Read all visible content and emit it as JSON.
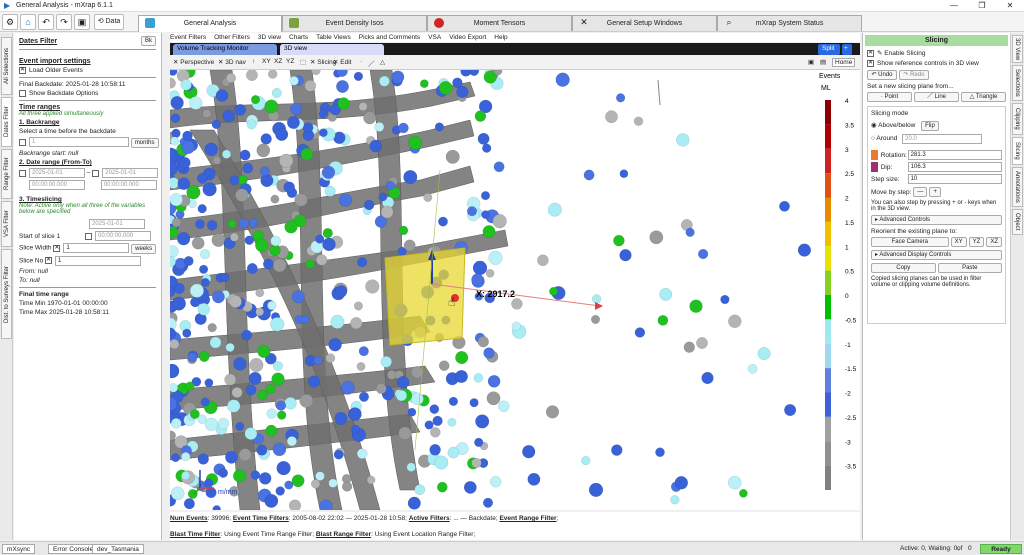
{
  "window": {
    "title": "General Analysis - mXrap 6.1.1",
    "minimize": "—",
    "restore": "❐",
    "close": "✕"
  },
  "toolbar": {
    "data_label": "Data"
  },
  "main_tabs": [
    {
      "label": "General Analysis",
      "active": true,
      "color": "#39a0d6"
    },
    {
      "label": "Event Density Isos",
      "active": false,
      "color": "#7aa33c"
    },
    {
      "label": "Moment Tensors",
      "active": false,
      "color": "#d02525"
    },
    {
      "label": "General Setup Windows",
      "active": false,
      "color": "#555555"
    },
    {
      "label": "mXrap System Status",
      "active": false,
      "color": "#555555"
    }
  ],
  "left_tabs": [
    "All Selections",
    "Dates Filter",
    "Range Filter",
    "VSA Filter",
    "Dist. to Surveys Filter"
  ],
  "dates_filter": {
    "title": "Dates Filter",
    "bk": "Bk",
    "import_settings": "Event import settings",
    "load_older": "Load Older Events",
    "final_backdate": "Final Backdate: 2025-01-28 10:58:11",
    "show_backdate": "Show Backdate Options",
    "time_ranges": "Time ranges",
    "time_ranges_note": "All three applied simultaneously",
    "backrange": "1. Backrange",
    "backrange_desc": "Select a time before the backdate",
    "backrange_value": "1",
    "months": "months",
    "backrange_start": "Backrange start: null",
    "date_range": "2. Date range (From-To)",
    "date_from": "2025-01-01",
    "time_from": "00:00:00.000",
    "date_to": "2025-01-01",
    "time_to": "00:00:00.000",
    "timeslicing": "3. Timeslicing",
    "timeslicing_note": "Note: Active only when all three of the variables below are specified",
    "start_slice": "Start of slice 1",
    "slice_date": "2025-01-01",
    "slice_time": "00:00:00.000",
    "slice_width_label": "Slice Width",
    "slice_width": "1",
    "weeks": "weeks",
    "slice_no_label": "Slice No",
    "slice_no": "1",
    "from": "From: null",
    "to": "To: null",
    "final_time_range": "Final time range",
    "time_min": "Time Min 1970-01-01 00:00:00",
    "time_max": "Time Max 2025-01-28 10:58:11"
  },
  "center_menu": [
    "Event Filters",
    "Other Filters",
    "3D view",
    "Charts",
    "Table Views",
    "Picks and Comments",
    "VSA",
    "Video Export",
    "Help"
  ],
  "view_tabs": [
    {
      "label": "Volume Tracking Monitor"
    },
    {
      "label": "3D view"
    }
  ],
  "split_label": "Split",
  "view_toolbar": {
    "perspective": "Perspective",
    "nav": "3D nav",
    "xy": "XY",
    "xz": "XZ",
    "yz": "YZ",
    "slicing": "Slicing",
    "edit": "Edit",
    "home": "Home"
  },
  "scene": {
    "coord_label": "X: 2917.2",
    "scale_label": "m/mm"
  },
  "legend": {
    "title": "Events",
    "unit": "ML",
    "ticks": [
      "4",
      "3.5",
      "3",
      "2.5",
      "2",
      "1.5",
      "1",
      "0.5",
      "0",
      "-0.5",
      "-1",
      "-1.5",
      "-2",
      "-2.5",
      "-3",
      "-3.5"
    ],
    "colors": [
      "#8b0000",
      "#b00000",
      "#d02020",
      "#e05010",
      "#e88a00",
      "#f0c000",
      "#e8e000",
      "#88d020",
      "#00c000",
      "#a0e8f0",
      "#a0d8f0",
      "#6080e0",
      "#4060d8",
      "#a0a0a0",
      "#909090",
      "#808080"
    ]
  },
  "status_text": {
    "num_events_label": "Num Events",
    "num_events": ": 39996;",
    "etf_label": "Event Time Filters",
    "etf": ": 2005-08-02 22:02 — 2025-01-28 10:58;",
    "af_label": "Active Filters",
    "af": ": ... — Backdate;",
    "erf_label": "Event Range Filter",
    "erf": ";",
    "btf_label": "Blast Time Filter",
    "btf": ": Using Event Time Range Filter;",
    "brf_label": "Blast Range Filter",
    "brf": ": Using Event Location Range Filter;"
  },
  "slicing": {
    "title": "Slicing",
    "enable": "Enable Slicing",
    "show_ref": "Show reference controls in 3D view",
    "undo": "Undo",
    "redo": "Redo",
    "new_plane": "Set a new slicing plane from...",
    "point": "Point",
    "line": "Line",
    "triangle": "Triangle",
    "mode": "Slicing mode",
    "above_below": "Above/below",
    "flip": "Flip",
    "around": "Around",
    "around_val": "20.0",
    "rotation_label": "Rotation:",
    "rotation": "281.3",
    "dip_label": "Dip:",
    "dip": "106.3",
    "step_label": "Step size:",
    "step": "10",
    "move_label": "Move by step:",
    "step_note": "You can also step by pressing + or - keys when in the 3D view.",
    "advanced": "Advanced Controls",
    "reorient": "Reorient the existing plane to:",
    "face_camera": "Face Camera",
    "xy": "XY",
    "yz": "YZ",
    "xz": "XZ",
    "adv_display": "Advanced Display Controls",
    "copy": "Copy",
    "paste": "Paste",
    "copy_note": "Copied slicing planes can be used in filter volume or clipping volume definitions."
  },
  "right_tabs": [
    "3D View",
    "Selections",
    "Clipping",
    "Slicing",
    "Annotations",
    "Object"
  ],
  "bottom": {
    "sync": "mXsync",
    "console": "Error Console",
    "site": "dev_Tasmania",
    "active": "Active: 0, Waiting: 0,",
    "of": "of",
    "zero": "0",
    "ready": "Ready"
  }
}
